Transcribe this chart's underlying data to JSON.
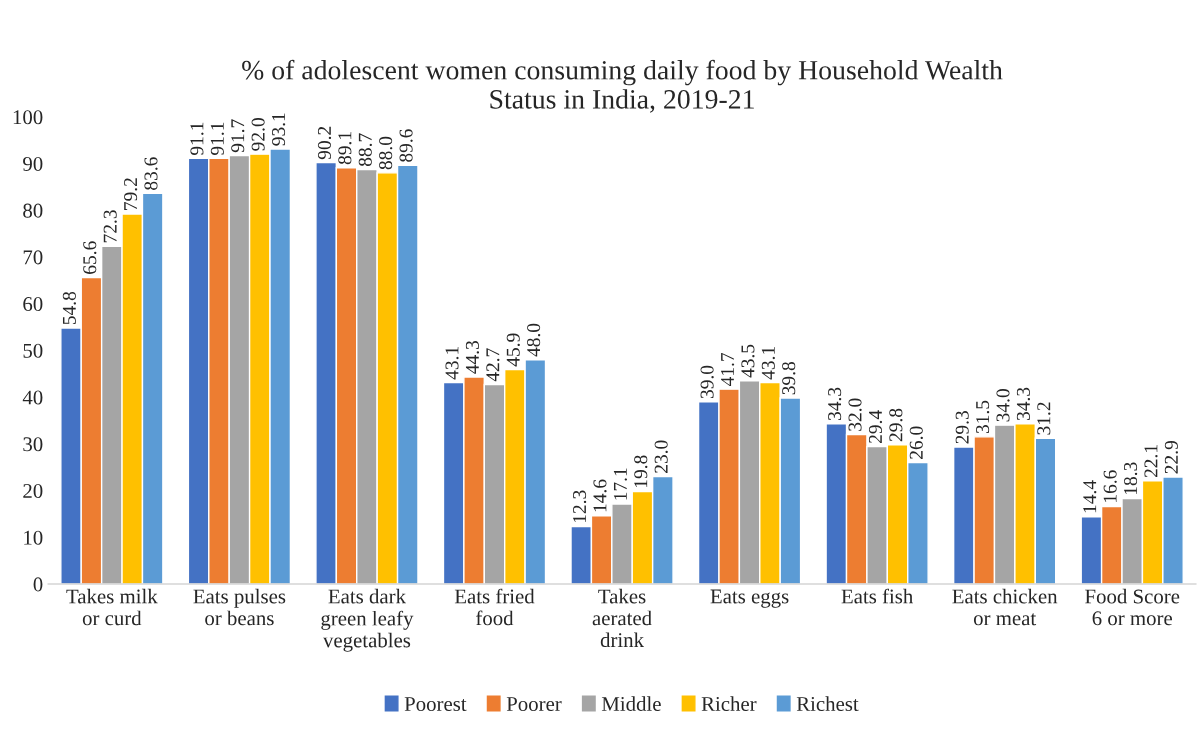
{
  "chart_data": {
    "type": "bar",
    "title": "% of adolescent women consuming daily food by Household Wealth\nStatus in India, 2019-21",
    "categories": [
      "Takes milk\nor curd",
      "Eats pulses\nor beans",
      "Eats dark\ngreen leafy\nvegetables",
      "Eats fried\nfood",
      "Takes\naerated\ndrink",
      "Eats eggs",
      "Eats fish",
      "Eats chicken\nor meat",
      "Food Score\n6 or more"
    ],
    "series": [
      {
        "name": "Poorest",
        "color": "#4472c4",
        "values": [
          54.8,
          91.1,
          90.2,
          43.1,
          12.3,
          39.0,
          34.3,
          29.3,
          14.4
        ],
        "value_labels": [
          "54.8",
          "91.1",
          "90.2",
          "43.1",
          "12.3",
          "39.0",
          "34.3",
          "29.3",
          "14.4"
        ]
      },
      {
        "name": "Poorer",
        "color": "#ed7d31",
        "values": [
          65.6,
          91.1,
          89.1,
          44.3,
          14.6,
          41.7,
          32.0,
          31.5,
          16.6
        ],
        "value_labels": [
          "65.6",
          "91.1",
          "89.1",
          "44.3",
          "14.6",
          "41.7",
          "32.0",
          "31.5",
          "16.6"
        ]
      },
      {
        "name": "Middle",
        "color": "#a5a5a5",
        "values": [
          72.3,
          91.7,
          88.7,
          42.7,
          17.1,
          43.5,
          29.4,
          34.0,
          18.3
        ],
        "value_labels": [
          "72.3",
          "91.7",
          "88.7",
          "42.7",
          "17.1",
          "43.5",
          "29.4",
          "34.0",
          "18.3"
        ]
      },
      {
        "name": "Richer",
        "color": "#ffc000",
        "values": [
          79.2,
          92.0,
          88.0,
          45.9,
          19.8,
          43.1,
          29.8,
          34.3,
          22.1
        ],
        "value_labels": [
          "79.2",
          "92.0",
          "88.0",
          "45.9",
          "19.8",
          "43.1",
          "29.8",
          "34.3",
          "22.1"
        ]
      },
      {
        "name": "Richest",
        "color": "#5b9bd5",
        "values": [
          83.6,
          93.1,
          89.6,
          48.0,
          23.0,
          39.8,
          26.0,
          31.2,
          22.9
        ],
        "value_labels": [
          "83.6",
          "93.1",
          "89.6",
          "48.0",
          "23.0",
          "39.8",
          "26.0",
          "31.2",
          "22.9"
        ]
      }
    ],
    "ylim": [
      0,
      100
    ],
    "yticks": [
      0,
      10,
      20,
      30,
      40,
      50,
      60,
      70,
      80,
      90,
      100
    ],
    "grid": false,
    "legend": "bottom"
  }
}
